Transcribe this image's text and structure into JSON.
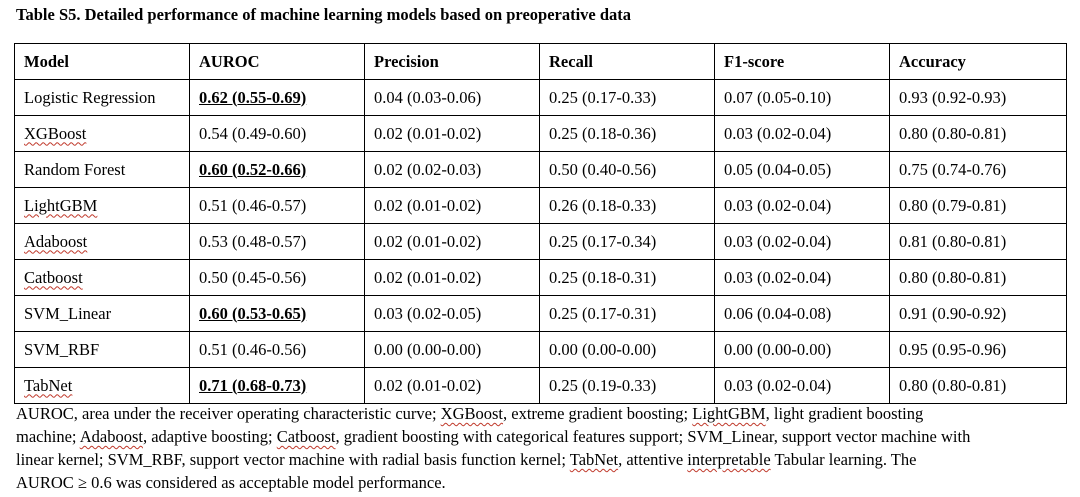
{
  "title": "Table S5. Detailed performance of machine learning models based on preoperative data",
  "table": {
    "headers": [
      "Model",
      "AUROC",
      "Precision",
      "Recall",
      "F1-score",
      "Accuracy"
    ],
    "rows": [
      {
        "model": "Logistic Regression",
        "auroc": "0.62 (0.55-0.69)",
        "auroc_highlight": true,
        "precision": "0.04 (0.03-0.06)",
        "recall": "0.25 (0.17-0.33)",
        "f1": "0.07 (0.05-0.10)",
        "accuracy": "0.93 (0.92-0.93)"
      },
      {
        "model": "XGBoost",
        "auroc": "0.54 (0.49-0.60)",
        "auroc_highlight": false,
        "precision": "0.02 (0.01-0.02)",
        "recall": "0.25 (0.18-0.36)",
        "f1": "0.03 (0.02-0.04)",
        "accuracy": "0.80 (0.80-0.81)"
      },
      {
        "model": "Random Forest",
        "auroc": "0.60 (0.52-0.66)",
        "auroc_highlight": true,
        "precision": "0.02 (0.02-0.03)",
        "recall": "0.50 (0.40-0.56)",
        "f1": "0.05 (0.04-0.05)",
        "accuracy": "0.75 (0.74-0.76)"
      },
      {
        "model": "LightGBM",
        "auroc": "0.51 (0.46-0.57)",
        "auroc_highlight": false,
        "precision": "0.02 (0.01-0.02)",
        "recall": "0.26 (0.18-0.33)",
        "f1": "0.03 (0.02-0.04)",
        "accuracy": "0.80 (0.79-0.81)"
      },
      {
        "model": "Adaboost",
        "auroc": "0.53 (0.48-0.57)",
        "auroc_highlight": false,
        "precision": "0.02 (0.01-0.02)",
        "recall": "0.25 (0.17-0.34)",
        "f1": "0.03 (0.02-0.04)",
        "accuracy": "0.81 (0.80-0.81)"
      },
      {
        "model": "Catboost",
        "auroc": "0.50 (0.45-0.56)",
        "auroc_highlight": false,
        "precision": "0.02 (0.01-0.02)",
        "recall": "0.25 (0.18-0.31)",
        "f1": "0.03 (0.02-0.04)",
        "accuracy": "0.80 (0.80-0.81)"
      },
      {
        "model": "SVM_Linear",
        "auroc": "0.60 (0.53-0.65)",
        "auroc_highlight": true,
        "precision": "0.03 (0.02-0.05)",
        "recall": "0.25 (0.17-0.31)",
        "f1": "0.06 (0.04-0.08)",
        "accuracy": "0.91 (0.90-0.92)"
      },
      {
        "model": "SVM_RBF",
        "auroc": "0.51 (0.46-0.56)",
        "auroc_highlight": false,
        "precision": "0.00 (0.00-0.00)",
        "recall": "0.00 (0.00-0.00)",
        "f1": "0.00 (0.00-0.00)",
        "accuracy": "0.95 (0.95-0.96)"
      },
      {
        "model": "TabNet",
        "auroc": "0.71 (0.68-0.73)",
        "auroc_highlight": true,
        "precision": "0.02 (0.01-0.02)",
        "recall": "0.25 (0.19-0.33)",
        "f1": "0.03 (0.02-0.04)",
        "accuracy": "0.80 (0.80-0.81)"
      }
    ]
  },
  "footnote": {
    "lines": [
      "AUROC, area under the receiver operating characteristic curve; XGBoost, extreme gradient boosting; LightGBM, light gradient boosting",
      "machine; Adaboost, adaptive boosting; Catboost, gradient boosting with categorical features support; SVM_Linear, support vector machine with",
      "linear kernel; SVM_RBF, support vector machine with radial basis function kernel; TabNet, attentive interpretable Tabular learning. The",
      "AUROC ≥ 0.6 was considered as acceptable model performance."
    ],
    "spellcheck_words": [
      "XGBoost",
      "LightGBM",
      "Adaboost",
      "Catboost",
      "TabNet",
      "interpretable"
    ]
  },
  "colors": {
    "spellcheck_underline": "#c0392b"
  }
}
